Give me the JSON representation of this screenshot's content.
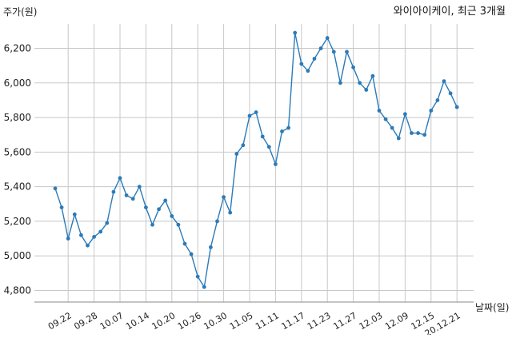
{
  "chart_data": {
    "type": "line",
    "title": "와이아이케이, 최근 3개월",
    "ylabel": "주가(원)",
    "xlabel": "날짜(일)",
    "ylim": [
      4750,
      6350
    ],
    "yticks": [
      4800,
      5000,
      5200,
      5400,
      5600,
      5800,
      6000,
      6200
    ],
    "ytick_labels": [
      "4,800",
      "5,000",
      "5,200",
      "5,400",
      "5,600",
      "5,800",
      "6,000",
      "6,200"
    ],
    "grid": true,
    "line_color": "#2b7bb9",
    "xtick_labels": [
      "09.22",
      "09.28",
      "10.07",
      "10.14",
      "10.20",
      "10.26",
      "10.30",
      "11.05",
      "11.11",
      "11.17",
      "11.23",
      "11.27",
      "12.03",
      "12.09",
      "12.15",
      "20.12.21"
    ],
    "xtick_index": [
      2,
      6,
      10,
      14,
      18,
      22,
      26,
      30,
      34,
      38,
      42,
      46,
      50,
      54,
      58,
      62
    ],
    "series": [
      {
        "values": [
          5390,
          5280,
          5100,
          5240,
          5120,
          5060,
          5110,
          5140,
          5190,
          5370,
          5450,
          5350,
          5330,
          5400,
          5280,
          5180,
          5270,
          5320,
          5230,
          5180,
          5070,
          5010,
          4880,
          4820,
          5050,
          5200,
          5340,
          5250,
          5590,
          5640,
          5810,
          5830,
          5690,
          5630,
          5530,
          5720,
          5740,
          6290,
          6110,
          6070,
          6140,
          6200,
          6260,
          6180,
          6000,
          6180,
          6090,
          6000,
          5960,
          6040,
          5840,
          5790,
          5740,
          5680,
          5820,
          5710,
          5710,
          5700,
          5840,
          5900,
          6010,
          5940,
          5860
        ]
      }
    ]
  }
}
